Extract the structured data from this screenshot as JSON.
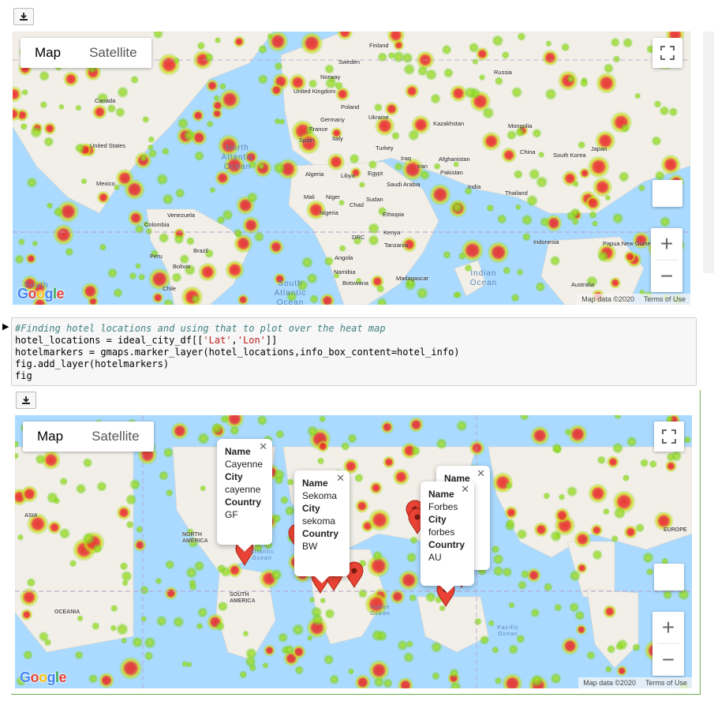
{
  "toolbar": {
    "download_icon": "download-icon"
  },
  "map1": {
    "type_map": "Map",
    "type_satellite": "Satellite",
    "attribution": "Map data ©2020",
    "terms": "Terms of Use",
    "google": "Google",
    "zoom_in": "+",
    "zoom_out": "−",
    "countries": [
      "Finland",
      "Sweden",
      "Norway",
      "United Kingdom",
      "Poland",
      "Germany",
      "Ukraine",
      "France",
      "Spain",
      "Italy",
      "Russia",
      "Kazakhstan",
      "Mongolia",
      "China",
      "Japan",
      "South Korea",
      "Canada",
      "United States",
      "Mexico",
      "Turkey",
      "Iraq",
      "Iran",
      "Afghanistan",
      "Pakistan",
      "India",
      "Thailand",
      "Algeria",
      "Libya",
      "Egypt",
      "Saudi Arabia",
      "Mali",
      "Niger",
      "Chad",
      "Sudan",
      "Nigeria",
      "Ethiopia",
      "Kenya",
      "DRC",
      "Tanzania",
      "Angola",
      "Namibia",
      "Botswana",
      "Madagascar",
      "Venezuela",
      "Colombia",
      "Peru",
      "Brazil",
      "Bolivia",
      "Chile",
      "Indonesia",
      "Papua New Guinea",
      "Australia"
    ],
    "oceans": [
      "North Atlantic Ocean",
      "South Atlantic Ocean",
      "Indian Ocean",
      "South"
    ]
  },
  "code": {
    "comment": "#Finding hotel locations and using that to plot over the heat map",
    "line2_a": "hotel_locations = ideal_city_df[[",
    "line2_s1": "'Lat'",
    "line2_c": ",",
    "line2_s2": "'Lon'",
    "line2_e": "]]",
    "line3": "hotelmarkers = gmaps.marker_layer(hotel_locations,info_box_content=hotel_info)",
    "line4": "fig.add_layer(hotelmarkers)",
    "line5": "fig"
  },
  "map2": {
    "type_map": "Map",
    "type_satellite": "Satellite",
    "attribution": "Map data ©2020",
    "terms": "Terms of Use",
    "google": "Google",
    "zoom_in": "+",
    "zoom_out": "−",
    "regions": [
      "ASIA",
      "NORTH AMERICA",
      "SOUTH AMERICA",
      "OCEANIA",
      "EUROPE",
      "Atlantic Ocean",
      "Indian Ocean",
      "Pacific Ocean"
    ],
    "infoboxes": [
      {
        "name_key": "Name",
        "name": "Cayenne",
        "city_key": "City",
        "city": "cayenne",
        "country_key": "Country",
        "country": "GF"
      },
      {
        "name_key": "Name",
        "name": "Sekoma",
        "city_key": "City",
        "city": "sekoma",
        "country_key": "Country",
        "country": "BW"
      },
      {
        "name_key": "Name",
        "name": "Forbes",
        "city_key": "City",
        "city": "forbes",
        "country_key": "Country",
        "country": "AU"
      },
      {
        "name_key": "Name"
      }
    ]
  },
  "colors": {
    "water": "#aadaff",
    "land": "#f2efe9",
    "heat_red": "#e8312a",
    "heat_green": "#7ed321",
    "marker": "#ea4335"
  }
}
